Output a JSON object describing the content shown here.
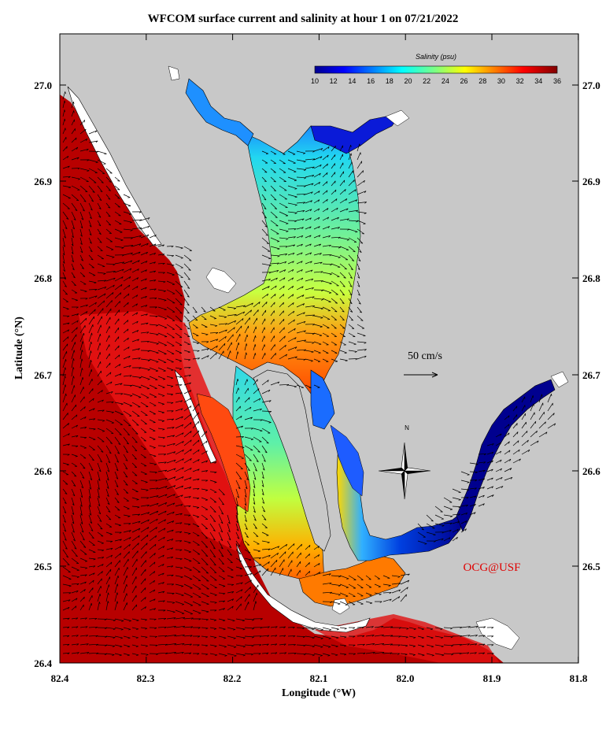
{
  "title": "WFCOM surface current and salinity at hour 1 on 07/21/2022",
  "axes": {
    "xlabel": "Longitude (°W)",
    "ylabel": "Latitude (°N)",
    "x_ticks": [
      "82.4",
      "82.3",
      "82.2",
      "82.1",
      "82.0",
      "81.9",
      "81.8"
    ],
    "y_ticks": [
      "27.0",
      "26.9",
      "26.8",
      "26.7",
      "26.6",
      "26.5",
      "26.4"
    ],
    "x_range": [
      82.4,
      81.8
    ],
    "y_range": [
      26.4,
      27.05
    ]
  },
  "colorbar": {
    "title": "Salinity (psu)",
    "labels": [
      "10",
      "12",
      "14",
      "16",
      "18",
      "20",
      "22",
      "24",
      "26",
      "28",
      "30",
      "32",
      "34",
      "36"
    ],
    "range": [
      10,
      36
    ]
  },
  "reference_vector": {
    "label": "50 cm/s"
  },
  "compass": {
    "label": "N"
  },
  "credit": "OCG@USF",
  "colors": {
    "land": "#c8c8c8",
    "gulf": "#b40000",
    "gulf_light": "#e01010",
    "credit": "#e00000"
  }
}
